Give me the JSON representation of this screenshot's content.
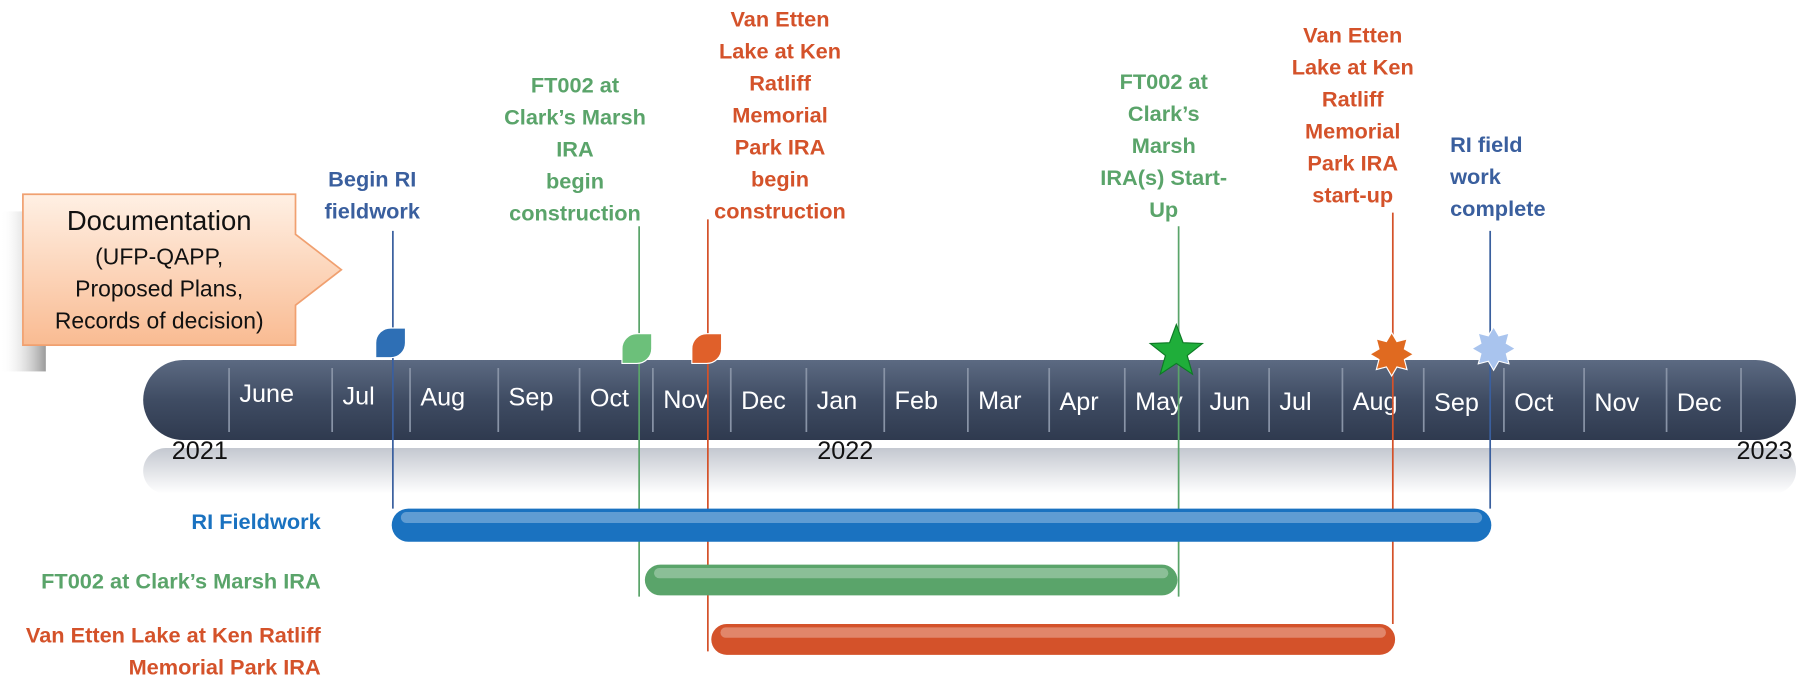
{
  "documentation": {
    "title": "Documentation",
    "lines": [
      "(UFP-QAPP,",
      "Proposed Plans,",
      "Records of decision)"
    ]
  },
  "months": [
    "June",
    "Jul",
    "Aug",
    "Sep",
    "Oct",
    "Nov",
    "Dec",
    "Jan",
    "Feb",
    "Mar",
    "Apr",
    "May",
    "Jun",
    "Jul",
    "Aug",
    "Sep",
    "Oct",
    "Nov",
    "Dec"
  ],
  "years": [
    "2021",
    "2022",
    "2023"
  ],
  "milestones": [
    {
      "lines": [
        "Begin RI",
        "fieldwork"
      ],
      "color": "#3a5f9e"
    },
    {
      "lines": [
        "FT002 at",
        "Clark’s Marsh",
        "IRA",
        "begin",
        "construction"
      ],
      "color": "#5aa46a"
    },
    {
      "lines": [
        "Van Etten",
        "Lake at Ken",
        "Ratliff",
        "Memorial",
        "Park IRA",
        "begin",
        "construction"
      ],
      "color": "#d4522a"
    },
    {
      "lines": [
        "FT002 at",
        "Clark’s",
        "Marsh",
        "IRA(s) Start-",
        "Up"
      ],
      "color": "#5aa46a"
    },
    {
      "lines": [
        "Van Etten",
        "Lake at Ken",
        "Ratliff",
        "Memorial",
        "Park IRA",
        "start-up"
      ],
      "color": "#d4522a"
    },
    {
      "lines": [
        "RI field",
        "work",
        "complete"
      ],
      "color": "#3a5f9e"
    }
  ],
  "bars": [
    {
      "label_lines": [
        "RI Fieldwork"
      ],
      "color": "#1a72c0"
    },
    {
      "label_lines": [
        "FT002 at Clark’s Marsh IRA"
      ],
      "color": "#5aa46a"
    },
    {
      "label_lines": [
        "Van Etten Lake at Ken Ratliff",
        "Memorial Park IRA"
      ],
      "color": "#d4522a"
    }
  ]
}
